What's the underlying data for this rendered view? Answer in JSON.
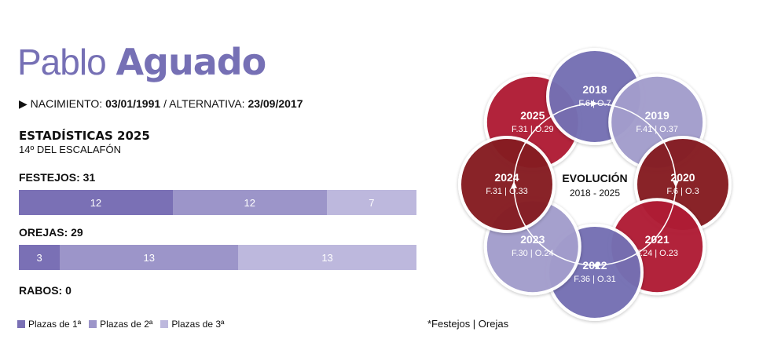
{
  "header": {
    "first_name": "Pablo",
    "last_name": "Aguado"
  },
  "bio": {
    "birth_label": "NACIMIENTO:",
    "birth": "03/01/1991",
    "sep": "/",
    "alt_label": "ALTERNATIVA:",
    "alt": "23/09/2017"
  },
  "stats": {
    "title": "ESTADÍSTICAS 2025",
    "rank": "14º DEL ESCALAFÓN",
    "rabos": "RABOS: 0"
  },
  "colors": {
    "primera": "#7a70b5",
    "segunda": "#9c95c9",
    "tercera": "#bdb8dd",
    "crimson": "#b01e36",
    "darkred": "#861e24",
    "purple": "#7470b3",
    "lilac": "#a39dcc"
  },
  "chart_data": [
    {
      "type": "bar",
      "stacked": true,
      "title": "FESTEJOS: 31",
      "series": [
        {
          "name": "Plazas de 1ª",
          "value": 12
        },
        {
          "name": "Plazas de 2ª",
          "value": 12
        },
        {
          "name": "Plazas de 3ª",
          "value": 7
        }
      ]
    },
    {
      "type": "bar",
      "stacked": true,
      "title": "OREJAS: 29",
      "series": [
        {
          "name": "Plazas de 1ª",
          "value": 3
        },
        {
          "name": "Plazas de 2ª",
          "value": 13
        },
        {
          "name": "Plazas de 3ª",
          "value": 13
        }
      ]
    },
    {
      "type": "cycle",
      "title": "EVOLUCIÓN",
      "subtitle": "2018 - 2025",
      "note": "*Festejos | Orejas",
      "years": [
        {
          "year": "2018",
          "label": "F.6 | O.7",
          "festejos": 6,
          "orejas": 7,
          "color": "purple"
        },
        {
          "year": "2019",
          "label": "F.41 | O.37",
          "festejos": 41,
          "orejas": 37,
          "color": "lilac"
        },
        {
          "year": "2020",
          "label": "F.6 | O.3",
          "festejos": 6,
          "orejas": 3,
          "color": "darkred"
        },
        {
          "year": "2021",
          "label": "F.24 | O.23",
          "festejos": 24,
          "orejas": 23,
          "color": "crimson"
        },
        {
          "year": "2022",
          "label": "F.36 | O.31",
          "festejos": 36,
          "orejas": 31,
          "color": "purple"
        },
        {
          "year": "2023",
          "label": "F.30 | O.24",
          "festejos": 30,
          "orejas": 24,
          "color": "lilac"
        },
        {
          "year": "2024",
          "label": "F.31 | O.33",
          "festejos": 31,
          "orejas": 33,
          "color": "darkred"
        },
        {
          "year": "2025",
          "label": "F.31 | O.29",
          "festejos": 31,
          "orejas": 29,
          "color": "crimson"
        }
      ]
    }
  ],
  "legend": [
    "Plazas de 1ª",
    "Plazas de 2ª",
    "Plazas de 3ª"
  ]
}
